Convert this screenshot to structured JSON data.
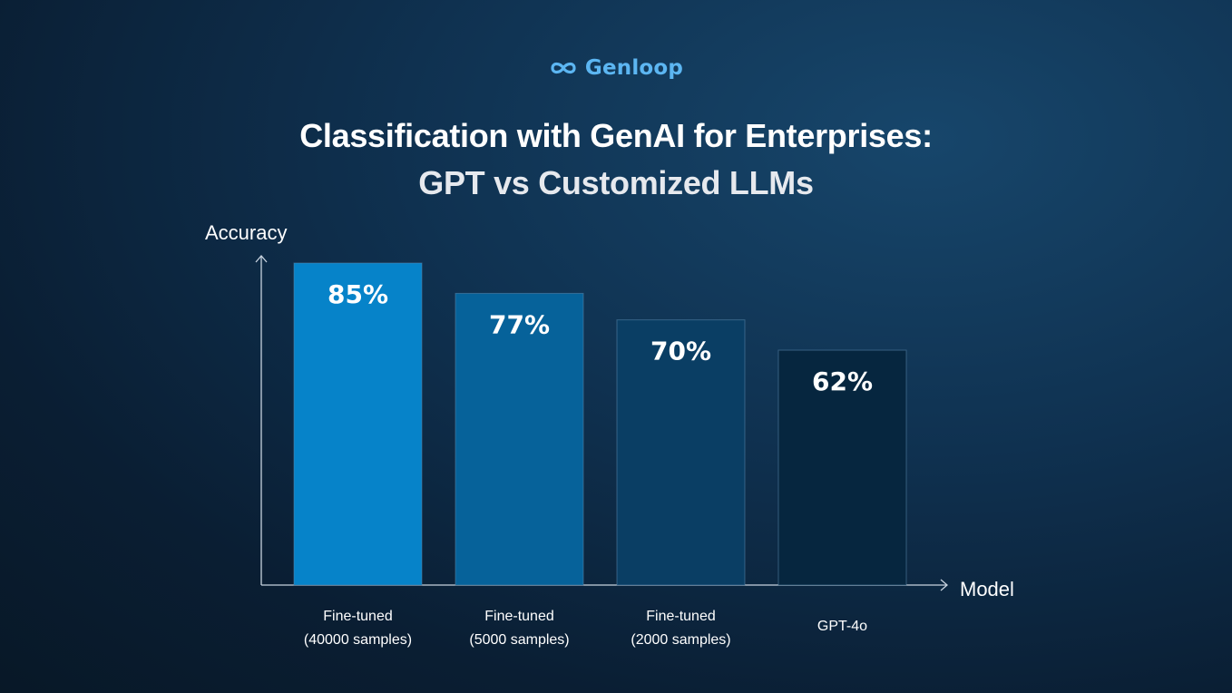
{
  "brand": {
    "name": "Genloop",
    "icon": "infinity-loop-icon",
    "color": "#5cb6f2"
  },
  "title": "Classification with GenAI for Enterprises:",
  "subtitle": "GPT vs Customized LLMs",
  "chart_data": {
    "type": "bar",
    "categories": [
      [
        "Fine-tuned",
        "(40000 samples)"
      ],
      [
        "Fine-tuned",
        "(5000 samples)"
      ],
      [
        "Fine-tuned",
        "(2000 samples)"
      ],
      [
        "GPT-4o"
      ]
    ],
    "values": [
      85,
      77,
      70,
      62
    ],
    "data_labels": [
      "85%",
      "77%",
      "70%",
      "62%"
    ],
    "bar_colors": [
      "#0683c9",
      "#06629a",
      "#0a3e64",
      "#06263f"
    ],
    "xlabel": "Model",
    "ylabel": "Accuracy",
    "grid": false
  }
}
